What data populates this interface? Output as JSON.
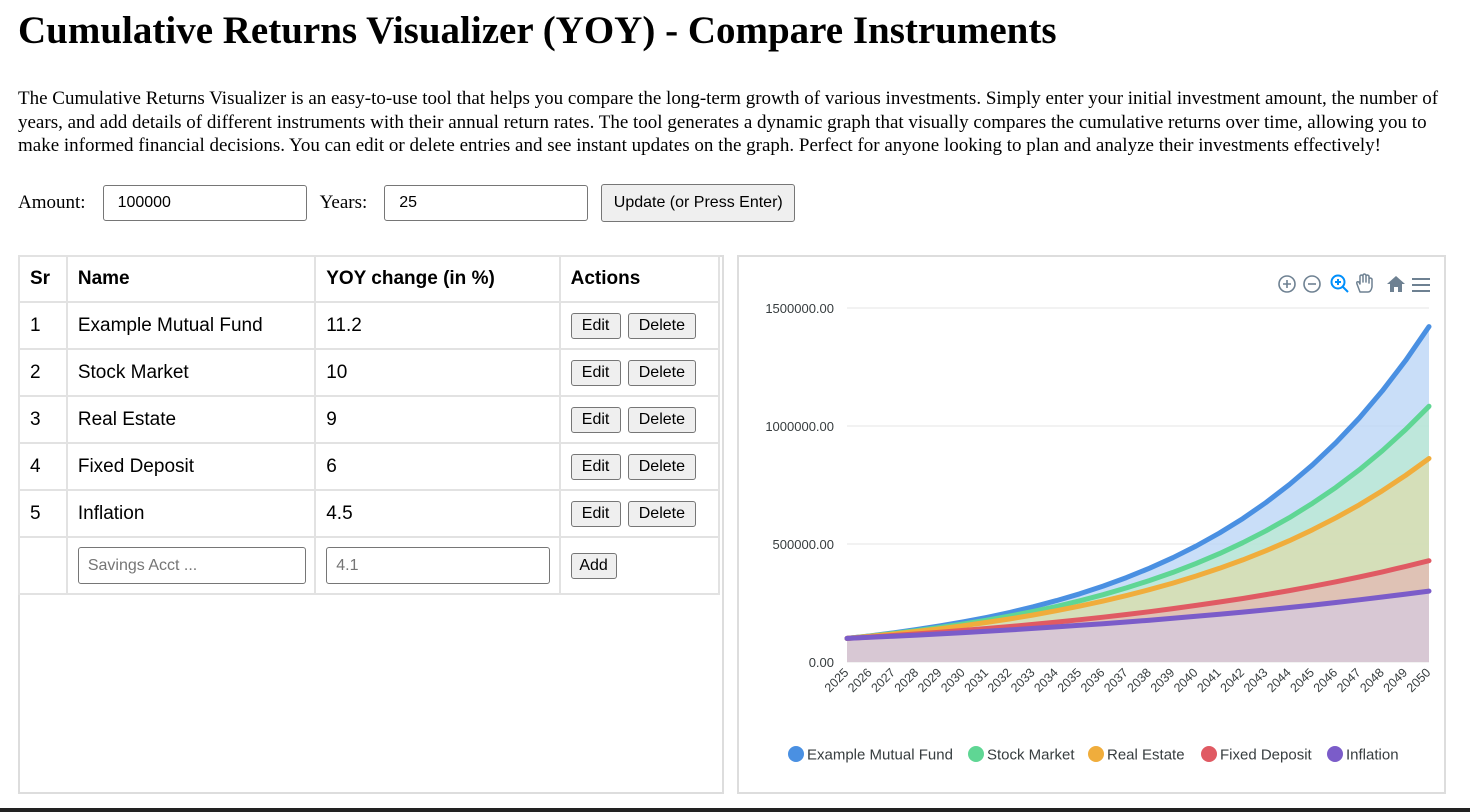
{
  "header": {
    "title": "Cumulative Returns Visualizer (YOY) - Compare Instruments",
    "intro": "The Cumulative Returns Visualizer is an easy-to-use tool that helps you compare the long-term growth of various investments. Simply enter your initial investment amount, the number of years, and add details of different instruments with their annual return rates. The tool generates a dynamic graph that visually compares the cumulative returns over time, allowing you to make informed financial decisions. You can edit or delete entries and see instant updates on the graph. Perfect for anyone looking to plan and analyze their investments effectively!"
  },
  "controls": {
    "amount_label": "Amount:",
    "amount_value": "100000",
    "years_label": "Years:",
    "years_value": "25",
    "update_label": "Update (or Press Enter)"
  },
  "table": {
    "headers": [
      "Sr",
      "Name",
      "YOY change (in %)",
      "Actions"
    ],
    "rows": [
      {
        "sr": "1",
        "name": "Example Mutual Fund",
        "yoy": "11.2"
      },
      {
        "sr": "2",
        "name": "Stock Market",
        "yoy": "10"
      },
      {
        "sr": "3",
        "name": "Real Estate",
        "yoy": "9"
      },
      {
        "sr": "4",
        "name": "Fixed Deposit",
        "yoy": "6"
      },
      {
        "sr": "5",
        "name": "Inflation",
        "yoy": "4.5"
      }
    ],
    "edit_label": "Edit",
    "delete_label": "Delete",
    "new_name_placeholder": "Savings Acct ...",
    "new_yoy_placeholder": "4.1",
    "add_label": "Add"
  },
  "toolbar": {
    "icons": [
      "zoom-in-icon",
      "zoom-out-icon",
      "selection-zoom-icon",
      "pan-icon",
      "reset-home-icon",
      "menu-icon"
    ]
  },
  "chart_data": {
    "type": "area",
    "x": [
      2025,
      2026,
      2027,
      2028,
      2029,
      2030,
      2031,
      2032,
      2033,
      2034,
      2035,
      2036,
      2037,
      2038,
      2039,
      2040,
      2041,
      2042,
      2043,
      2044,
      2045,
      2046,
      2047,
      2048,
      2049,
      2050
    ],
    "x_tick_labels": [
      "2025",
      "2026",
      "2027",
      "2028",
      "2029",
      "2030",
      "2031",
      "2032",
      "2033",
      "2034",
      "2035",
      "2036",
      "2037",
      "2038",
      "2039",
      "2040",
      "2041",
      "2042",
      "2043",
      "2044",
      "2045",
      "2046",
      "2047",
      "2048",
      "2049",
      "2050"
    ],
    "y_tick_labels": [
      "0.00",
      "500000.00",
      "1000000.00",
      "1500000.00"
    ],
    "y_ticks": [
      0,
      500000,
      1000000,
      1500000
    ],
    "ylim": [
      0,
      1500000
    ],
    "grid": true,
    "legend_position": "bottom",
    "series": [
      {
        "name": "Example Mutual Fund",
        "color": "#4a90e2",
        "fill": "#b7d3f6",
        "values": [
          100000,
          111200,
          123654,
          137504,
          152904,
          170030,
          189073,
          210249,
          233797,
          259983,
          289101,
          321481,
          357487,
          397526,
          442049,
          491558,
          546613,
          607834,
          675911,
          751613,
          835794,
          929403,
          1033496,
          1149248,
          1277964,
          1421096
        ]
      },
      {
        "name": "Stock Market",
        "color": "#5fd694",
        "fill": "#b9e9d1",
        "values": [
          100000,
          110000,
          121000,
          133100,
          146410,
          161051,
          177156,
          194872,
          214359,
          235795,
          259374,
          285312,
          313843,
          345227,
          379750,
          417725,
          459497,
          505447,
          555992,
          611591,
          672750,
          740025,
          814027,
          895430,
          984973,
          1083471
        ]
      },
      {
        "name": "Real Estate",
        "color": "#f0ad3c",
        "fill": "#dcdcae",
        "values": [
          100000,
          109000,
          118810,
          129503,
          141158,
          153862,
          167710,
          182804,
          199256,
          217189,
          236736,
          258043,
          281266,
          306580,
          334173,
          364248,
          397031,
          432763,
          471712,
          514166,
          560441,
          610881,
          665860,
          725787,
          791108,
          862308
        ]
      },
      {
        "name": "Fixed Deposit",
        "color": "#e05a63",
        "fill": "#e2b8b4",
        "values": [
          100000,
          106000,
          112360,
          119102,
          126248,
          133823,
          141852,
          150363,
          159385,
          168948,
          179085,
          189830,
          201220,
          213293,
          226090,
          239656,
          254035,
          269277,
          285434,
          302560,
          320714,
          339956,
          360354,
          381975,
          404893,
          429187
        ]
      },
      {
        "name": "Inflation",
        "color": "#7b5cc9",
        "fill": "#d6c9df",
        "values": [
          100000,
          104500,
          109203,
          114117,
          119252,
          124618,
          130226,
          136086,
          142210,
          148610,
          155297,
          162285,
          169588,
          177220,
          185194,
          193528,
          202237,
          211338,
          220848,
          230786,
          241171,
          252024,
          263365,
          275217,
          287601,
          300543
        ]
      }
    ]
  }
}
